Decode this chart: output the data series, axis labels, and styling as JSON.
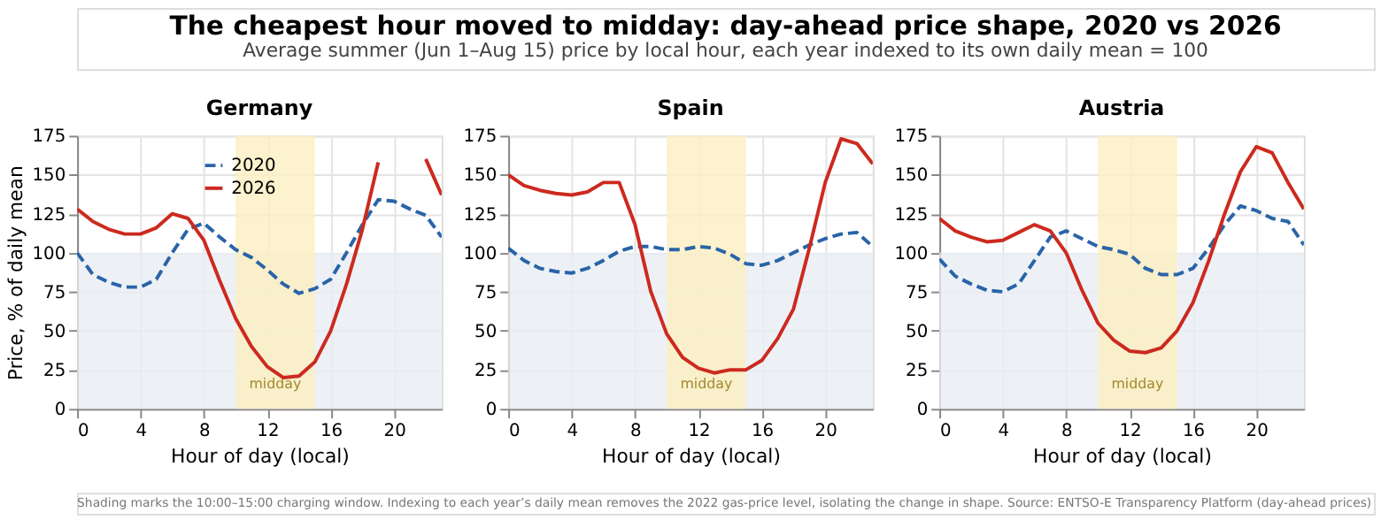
{
  "chart_data": [
    {
      "type": "other",
      "title": "The cheapest hour moved to midday: day-ahead price shape, 2020 vs 2026",
      "subtitle": "Average summer (Jun 1–Aug 15) price by local hour, each year indexed to its own daily mean = 100",
      "annotations": [
        "Shading marks the 10:00–15:00 charging window. Indexing to each year’s daily mean removes the 2022 gas-price level, isolating the change in shape. Source: ENTSO-E Transparency Platform (day-ahead prices)"
      ]
    },
    {
      "type": "line",
      "title": "Germany",
      "xlabel": "Hour of day (local)",
      "ylabel": "Price, % of daily mean",
      "x": [
        0,
        1,
        2,
        3,
        4,
        5,
        6,
        7,
        8,
        9,
        10,
        11,
        12,
        13,
        14,
        15,
        16,
        17,
        18,
        19,
        20,
        21,
        22,
        23
      ],
      "xlim": [
        0,
        23
      ],
      "xticks": [
        0,
        4,
        8,
        12,
        16,
        20
      ],
      "ylim": [
        0,
        175
      ],
      "yticks": [
        0,
        25,
        50,
        75,
        100,
        125,
        150,
        175
      ],
      "grid": true,
      "legend": "top",
      "marker": "none",
      "series": [
        {
          "name": "2020",
          "color": "#2a64a8",
          "line_style": "dashed",
          "values": [
            100,
            86,
            81,
            78,
            78,
            83,
            100,
            115,
            119,
            110,
            102,
            97,
            89,
            80,
            74,
            77,
            83,
            100,
            118,
            134,
            133,
            128,
            124,
            110
          ]
        },
        {
          "name": "2026",
          "color": "#cc2a1f",
          "line_style": "solid",
          "values": [
            128,
            120,
            115,
            112,
            112,
            116,
            125,
            122,
            108,
            82,
            58,
            40,
            27,
            20,
            21,
            30,
            50,
            80,
            115,
            158,
            null,
            null,
            160,
            137
          ]
        }
      ],
      "bands": [
        {
          "axis": "y",
          "from": 0,
          "to": 100,
          "color": "#e9eef4"
        },
        {
          "axis": "x",
          "from": 10,
          "to": 15,
          "label": "midday",
          "color": "#fbefc0"
        }
      ]
    },
    {
      "type": "line",
      "title": "Spain",
      "xlabel": "Hour of day (local)",
      "x": [
        0,
        1,
        2,
        3,
        4,
        5,
        6,
        7,
        8,
        9,
        10,
        11,
        12,
        13,
        14,
        15,
        16,
        17,
        18,
        19,
        20,
        21,
        22,
        23
      ],
      "xlim": [
        0,
        23
      ],
      "xticks": [
        0,
        4,
        8,
        12,
        16,
        20
      ],
      "ylim": [
        0,
        175
      ],
      "yticks": [
        0,
        25,
        50,
        75,
        100,
        125,
        150,
        175
      ],
      "grid": true,
      "marker": "none",
      "series": [
        {
          "color": "#2a64a8",
          "line_style": "dashed",
          "values": [
            103,
            95,
            90,
            88,
            87,
            90,
            95,
            101,
            104,
            104,
            102,
            102,
            104,
            103,
            99,
            93,
            92,
            95,
            100,
            105,
            109,
            112,
            113,
            104
          ]
        },
        {
          "color": "#cc2a1f",
          "line_style": "solid",
          "values": [
            150,
            143,
            140,
            138,
            137,
            139,
            145,
            145,
            118,
            75,
            48,
            33,
            26,
            23,
            25,
            25,
            31,
            45,
            64,
            103,
            145,
            173,
            170,
            157
          ]
        }
      ],
      "bands": [
        {
          "axis": "y",
          "from": 0,
          "to": 100,
          "color": "#e9eef4"
        },
        {
          "axis": "x",
          "from": 10,
          "to": 15,
          "label": "midday",
          "color": "#fbefc0"
        }
      ]
    },
    {
      "type": "line",
      "title": "Austria",
      "xlabel": "Hour of day (local)",
      "x": [
        0,
        1,
        2,
        3,
        4,
        5,
        6,
        7,
        8,
        9,
        10,
        11,
        12,
        13,
        14,
        15,
        16,
        17,
        18,
        19,
        20,
        21,
        22,
        23
      ],
      "xlim": [
        0,
        23
      ],
      "xticks": [
        0,
        4,
        8,
        12,
        16,
        20
      ],
      "ylim": [
        0,
        175
      ],
      "yticks": [
        0,
        25,
        50,
        75,
        100,
        125,
        150,
        175
      ],
      "grid": true,
      "marker": "none",
      "series": [
        {
          "color": "#2a64a8",
          "line_style": "dashed",
          "values": [
            96,
            85,
            80,
            76,
            75,
            80,
            95,
            110,
            114,
            109,
            104,
            102,
            99,
            90,
            86,
            86,
            90,
            103,
            118,
            130,
            127,
            122,
            120,
            105
          ]
        },
        {
          "color": "#cc2a1f",
          "line_style": "solid",
          "values": [
            122,
            114,
            110,
            107,
            108,
            113,
            118,
            114,
            100,
            76,
            55,
            44,
            37,
            36,
            39,
            50,
            68,
            95,
            125,
            152,
            168,
            164,
            145,
            128
          ]
        }
      ],
      "bands": [
        {
          "axis": "y",
          "from": 0,
          "to": 100,
          "color": "#e9eef4"
        },
        {
          "axis": "x",
          "from": 10,
          "to": 15,
          "label": "midday",
          "color": "#fbefc0"
        }
      ]
    }
  ]
}
